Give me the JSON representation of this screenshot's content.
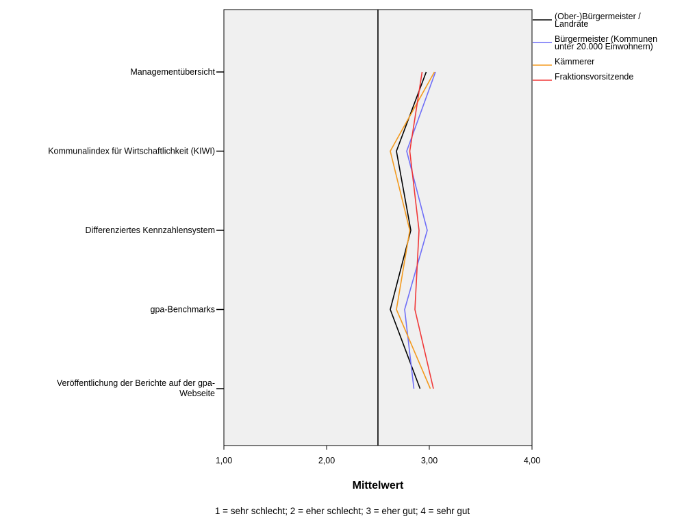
{
  "chart_data": {
    "type": "line",
    "orientation": "horizontal",
    "categories": [
      "Managementübersicht",
      "Kommunalindex für Wirtschaftlichkeit (KIWI)",
      "Differenziertes Kennzahlensystem",
      "gpa-Benchmarks",
      "Veröffentlichung der Berichte auf der gpa-Webseite"
    ],
    "xlabel": "Mittelwert",
    "xlim": [
      1,
      4
    ],
    "xticks": [
      "1,00",
      "2,00",
      "3,00",
      "4,00"
    ],
    "reference_line": 2.5,
    "footnote": "1 = sehr schlecht; 2 = eher schlecht; 3 = eher gut; 4 = sehr gut",
    "legend_position": "right",
    "grid": false,
    "series": [
      {
        "name": "(Ober-)Bürgermeister / Landräte",
        "color": "#000000",
        "values": [
          2.97,
          2.68,
          2.82,
          2.62,
          2.91
        ]
      },
      {
        "name": "Bürgermeister (Kommunen unter 20.000 Einwohnern)",
        "color": "#6f6ff7",
        "values": [
          3.06,
          2.78,
          2.98,
          2.76,
          2.85
        ]
      },
      {
        "name": "Kämmerer",
        "color": "#f39a1e",
        "values": [
          3.05,
          2.62,
          2.81,
          2.68,
          3.01
        ]
      },
      {
        "name": "Fraktionsvorsitzende",
        "color": "#f03838",
        "values": [
          2.93,
          2.81,
          2.9,
          2.86,
          3.04
        ]
      }
    ]
  }
}
